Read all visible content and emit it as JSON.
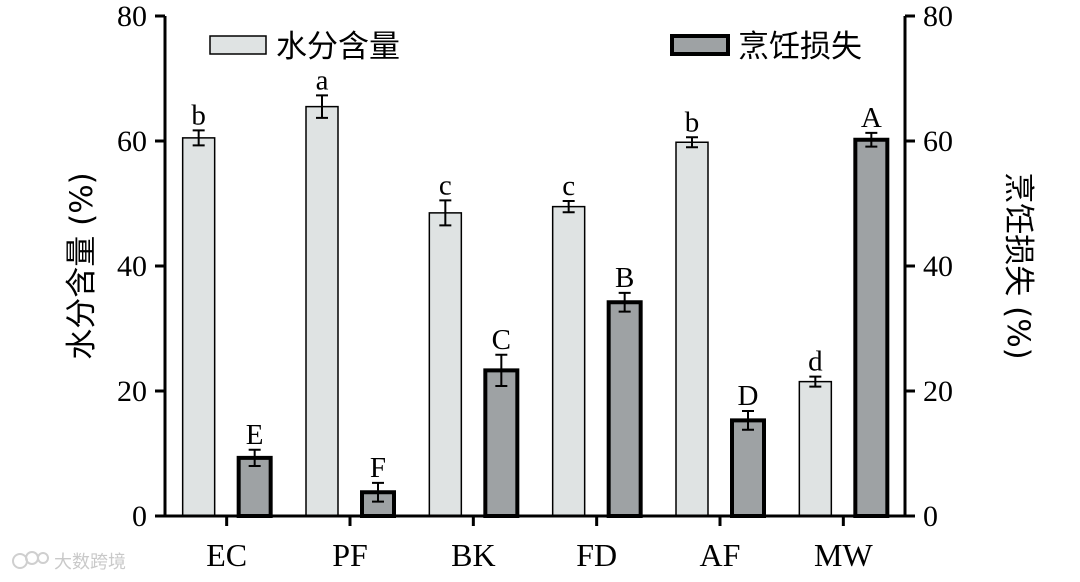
{
  "chart_data": {
    "type": "bar",
    "categories": [
      "EC",
      "PF",
      "BK",
      "FD",
      "AF",
      "MW"
    ],
    "series": [
      {
        "name": "水分含量",
        "axis": "left",
        "color": "#dfe3e3",
        "values": [
          60.5,
          65.5,
          48.5,
          49.5,
          59.8,
          21.5
        ],
        "errors": [
          1.2,
          1.8,
          2.0,
          0.9,
          0.8,
          0.8
        ],
        "labels": [
          "b",
          "a",
          "c",
          "c",
          "b",
          "d"
        ]
      },
      {
        "name": "烹饪损失",
        "axis": "right",
        "color": "#9ea2a4",
        "values": [
          9.3,
          3.8,
          23.3,
          34.2,
          15.3,
          60.2
        ],
        "errors": [
          1.3,
          1.5,
          2.5,
          1.5,
          1.5,
          1.1
        ],
        "labels": [
          "E",
          "F",
          "C",
          "B",
          "D",
          "A"
        ]
      }
    ],
    "ylabel": "水分含量 (%)",
    "y2label": "烹饪损失 (%)",
    "ylim": [
      0,
      80
    ],
    "y2lim": [
      0,
      80
    ],
    "yticks": [
      "0",
      "20",
      "40",
      "60",
      "80"
    ],
    "legend_position": "top",
    "grid": false
  },
  "watermark": {
    "text": "大数跨境",
    "icon": "watermark-logo-icon"
  }
}
